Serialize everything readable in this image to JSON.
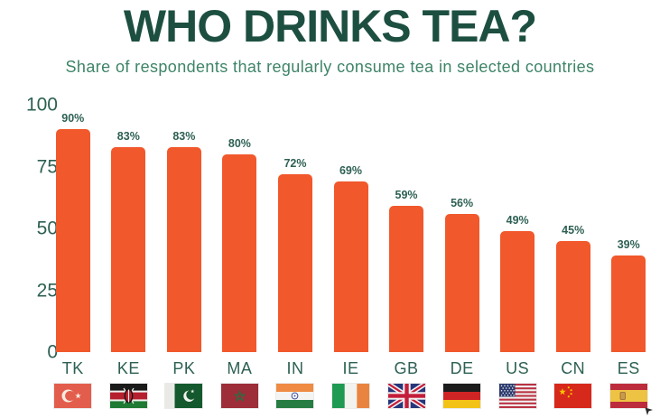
{
  "header": {
    "title": "WHO DRINKS TEA?",
    "subtitle": "Share of respondents that regularly consume tea in selected countries"
  },
  "colors": {
    "title": "#1d4f41",
    "subtitle": "#3e8468",
    "axis_text": "#2d6053",
    "bar": "#f1582b"
  },
  "chart_data": {
    "type": "bar",
    "title": "WHO DRINKS TEA?",
    "subtitle": "Share of respondents that regularly consume tea in selected countries",
    "categories": [
      "TK",
      "KE",
      "PK",
      "MA",
      "IN",
      "IE",
      "GB",
      "DE",
      "US",
      "CN",
      "ES"
    ],
    "values": [
      90,
      83,
      83,
      80,
      72,
      69,
      59,
      56,
      49,
      45,
      39
    ],
    "value_labels": [
      "90%",
      "83%",
      "83%",
      "80%",
      "72%",
      "69%",
      "59%",
      "56%",
      "49%",
      "45%",
      "39%"
    ],
    "flag_icons": [
      "flag-turkey-icon",
      "flag-kenya-icon",
      "flag-pakistan-icon",
      "flag-morocco-icon",
      "flag-india-icon",
      "flag-ireland-icon",
      "flag-united-kingdom-icon",
      "flag-germany-icon",
      "flag-united-states-icon",
      "flag-china-icon",
      "flag-spain-icon"
    ],
    "yticks": [
      0,
      25,
      50,
      75,
      100
    ],
    "ylim": [
      0,
      100
    ],
    "xlabel": "",
    "ylabel": "",
    "grid": false,
    "legend": false,
    "bar_color": "#f1582b"
  }
}
